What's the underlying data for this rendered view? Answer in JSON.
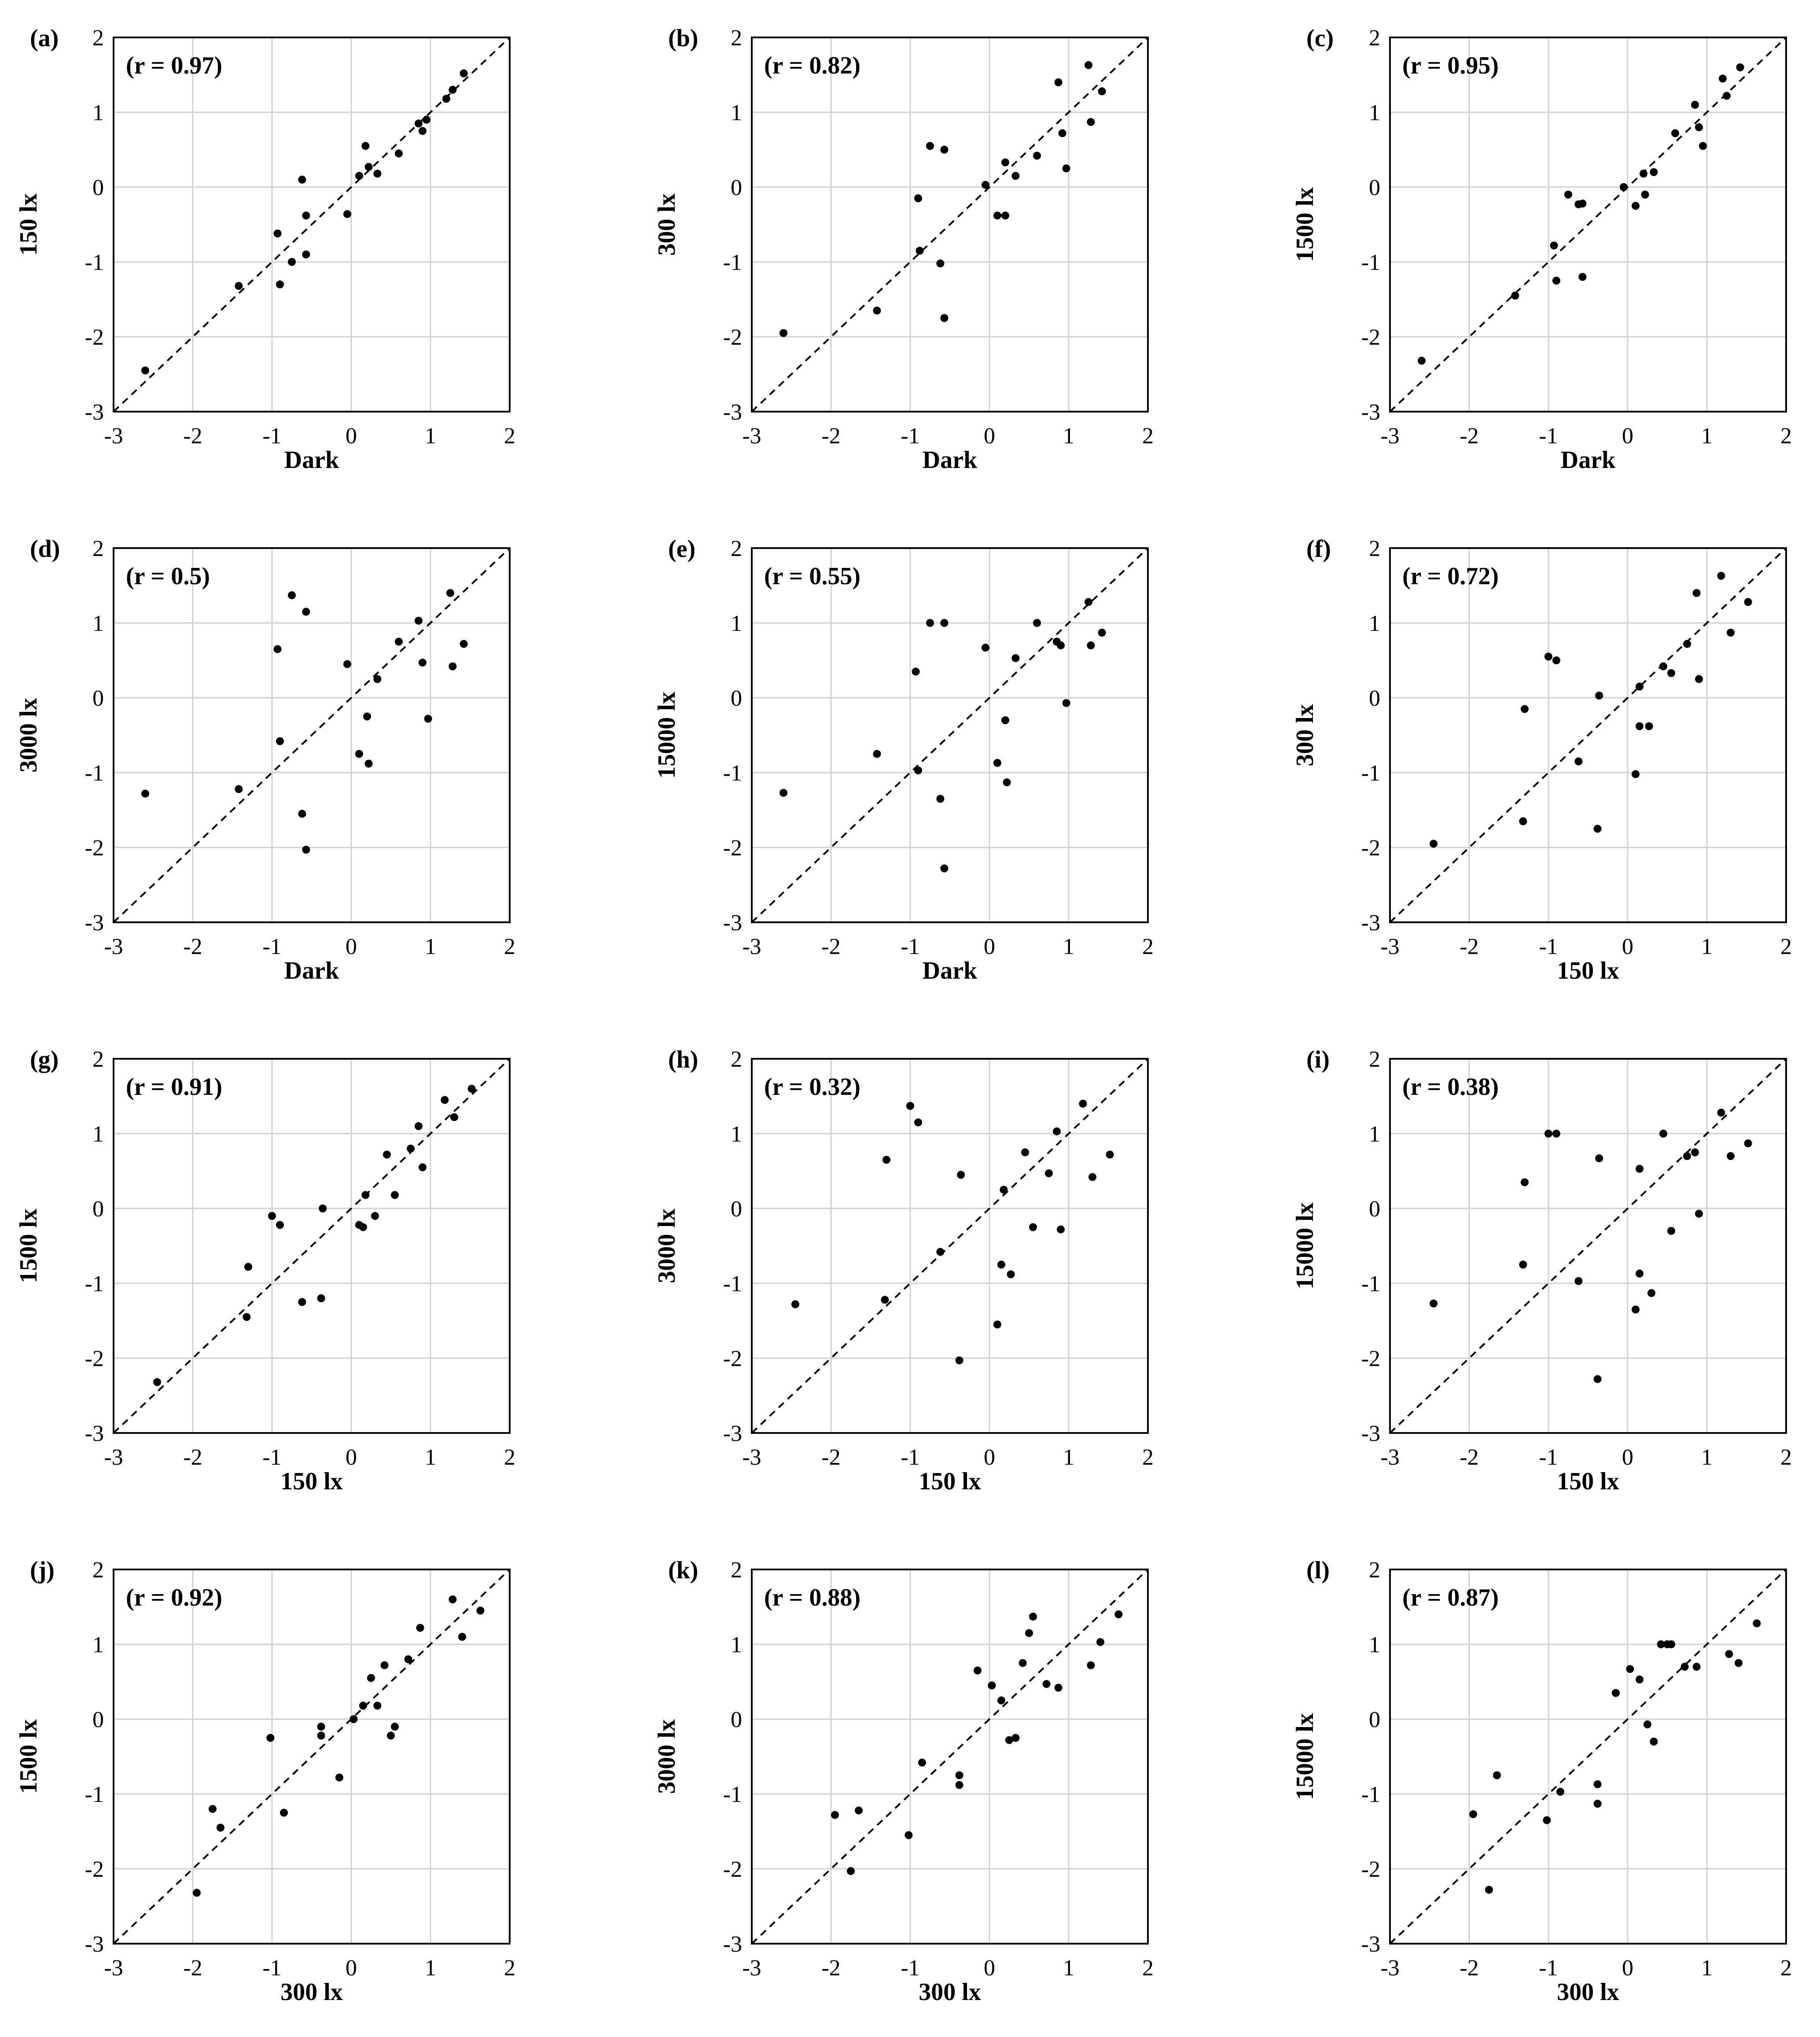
{
  "figure": {
    "axis_ticks": [
      "-3",
      "-2",
      "-1",
      "0",
      "1",
      "2"
    ]
  },
  "chart_data": [
    {
      "type": "scatter",
      "panel_label": "(a)",
      "correlation": "(r = 0.97)",
      "xlabel": "Dark",
      "ylabel": "150 lx",
      "xlim": [
        -3,
        2
      ],
      "ylim": [
        -3,
        2
      ],
      "reference_line": "y = x",
      "points": [
        [
          -2.6,
          -2.45
        ],
        [
          -1.42,
          -1.32
        ],
        [
          -0.93,
          -0.62
        ],
        [
          -0.9,
          -1.3
        ],
        [
          -0.75,
          -1.0
        ],
        [
          -0.62,
          0.1
        ],
        [
          -0.57,
          -0.38
        ],
        [
          -0.57,
          -0.9
        ],
        [
          -0.05,
          -0.36
        ],
        [
          0.1,
          0.15
        ],
        [
          0.18,
          0.55
        ],
        [
          0.22,
          0.27
        ],
        [
          0.33,
          0.18
        ],
        [
          0.6,
          0.45
        ],
        [
          0.85,
          0.85
        ],
        [
          0.9,
          0.75
        ],
        [
          0.95,
          0.9
        ],
        [
          1.2,
          1.18
        ],
        [
          1.28,
          1.3
        ],
        [
          1.42,
          1.52
        ]
      ]
    },
    {
      "type": "scatter",
      "panel_label": "(b)",
      "correlation": "(r = 0.82)",
      "xlabel": "Dark",
      "ylabel": "300 lx",
      "xlim": [
        -3,
        2
      ],
      "ylim": [
        -3,
        2
      ],
      "reference_line": "y = x",
      "points": [
        [
          -2.6,
          -1.95
        ],
        [
          -1.42,
          -1.65
        ],
        [
          -0.9,
          -0.15
        ],
        [
          -0.88,
          -0.85
        ],
        [
          -0.75,
          0.55
        ],
        [
          -0.62,
          -1.02
        ],
        [
          -0.57,
          0.5
        ],
        [
          -0.57,
          -1.75
        ],
        [
          -0.05,
          0.03
        ],
        [
          0.1,
          -0.38
        ],
        [
          0.2,
          -0.38
        ],
        [
          0.2,
          0.33
        ],
        [
          0.33,
          0.15
        ],
        [
          0.6,
          0.42
        ],
        [
          0.87,
          1.4
        ],
        [
          0.92,
          0.72
        ],
        [
          0.97,
          0.25
        ],
        [
          1.25,
          1.63
        ],
        [
          1.28,
          0.87
        ],
        [
          1.42,
          1.28
        ]
      ]
    },
    {
      "type": "scatter",
      "panel_label": "(c)",
      "correlation": "(r = 0.95)",
      "xlabel": "Dark",
      "ylabel": "1500 lx",
      "xlim": [
        -3,
        2
      ],
      "ylim": [
        -3,
        2
      ],
      "reference_line": "y = x",
      "points": [
        [
          -2.6,
          -2.32
        ],
        [
          -1.42,
          -1.45
        ],
        [
          -0.93,
          -0.78
        ],
        [
          -0.9,
          -1.25
        ],
        [
          -0.75,
          -0.1
        ],
        [
          -0.62,
          -0.23
        ],
        [
          -0.57,
          -0.22
        ],
        [
          -0.57,
          -1.2
        ],
        [
          -0.05,
          0.0
        ],
        [
          0.1,
          -0.25
        ],
        [
          0.2,
          0.18
        ],
        [
          0.22,
          -0.1
        ],
        [
          0.33,
          0.2
        ],
        [
          0.6,
          0.72
        ],
        [
          0.85,
          1.1
        ],
        [
          0.9,
          0.8
        ],
        [
          0.95,
          0.55
        ],
        [
          1.2,
          1.45
        ],
        [
          1.25,
          1.22
        ],
        [
          1.42,
          1.6
        ]
      ]
    },
    {
      "type": "scatter",
      "panel_label": "(d)",
      "correlation": "(r = 0.5)",
      "xlabel": "Dark",
      "ylabel": "3000 lx",
      "xlim": [
        -3,
        2
      ],
      "ylim": [
        -3,
        2
      ],
      "reference_line": "y = x",
      "points": [
        [
          -2.6,
          -1.28
        ],
        [
          -1.42,
          -1.22
        ],
        [
          -0.93,
          0.65
        ],
        [
          -0.9,
          -0.58
        ],
        [
          -0.75,
          1.37
        ],
        [
          -0.62,
          -1.55
        ],
        [
          -0.57,
          1.15
        ],
        [
          -0.57,
          -2.03
        ],
        [
          -0.05,
          0.45
        ],
        [
          0.1,
          -0.75
        ],
        [
          0.2,
          -0.25
        ],
        [
          0.22,
          -0.88
        ],
        [
          0.33,
          0.25
        ],
        [
          0.6,
          0.75
        ],
        [
          0.85,
          1.03
        ],
        [
          0.9,
          0.47
        ],
        [
          0.97,
          -0.28
        ],
        [
          1.25,
          1.4
        ],
        [
          1.28,
          0.42
        ],
        [
          1.42,
          0.72
        ]
      ]
    },
    {
      "type": "scatter",
      "panel_label": "(e)",
      "correlation": "(r = 0.55)",
      "xlabel": "Dark",
      "ylabel": "15000 lx",
      "xlim": [
        -3,
        2
      ],
      "ylim": [
        -3,
        2
      ],
      "reference_line": "y = x",
      "points": [
        [
          -2.6,
          -1.27
        ],
        [
          -1.42,
          -0.75
        ],
        [
          -0.93,
          0.35
        ],
        [
          -0.9,
          -0.97
        ],
        [
          -0.75,
          1.0
        ],
        [
          -0.62,
          -1.35
        ],
        [
          -0.57,
          1.0
        ],
        [
          -0.57,
          -2.28
        ],
        [
          -0.05,
          0.67
        ],
        [
          0.1,
          -0.87
        ],
        [
          0.2,
          -0.3
        ],
        [
          0.22,
          -1.13
        ],
        [
          0.33,
          0.53
        ],
        [
          0.6,
          1.0
        ],
        [
          0.85,
          0.75
        ],
        [
          0.9,
          0.7
        ],
        [
          0.97,
          -0.07
        ],
        [
          1.25,
          1.28
        ],
        [
          1.28,
          0.7
        ],
        [
          1.42,
          0.87
        ]
      ]
    },
    {
      "type": "scatter",
      "panel_label": "(f)",
      "correlation": "(r = 0.72)",
      "xlabel": "150 lx",
      "ylabel": "300 lx",
      "xlim": [
        -3,
        2
      ],
      "ylim": [
        -3,
        2
      ],
      "reference_line": "y = x",
      "points": [
        [
          -2.45,
          -1.95
        ],
        [
          -1.32,
          -1.65
        ],
        [
          -1.3,
          -0.15
        ],
        [
          -1.0,
          0.55
        ],
        [
          -0.9,
          0.5
        ],
        [
          -0.62,
          -0.85
        ],
        [
          -0.38,
          -1.75
        ],
        [
          -0.36,
          0.03
        ],
        [
          0.1,
          -1.02
        ],
        [
          0.15,
          0.15
        ],
        [
          0.15,
          -0.38
        ],
        [
          0.27,
          -0.38
        ],
        [
          0.45,
          0.42
        ],
        [
          0.55,
          0.33
        ],
        [
          0.75,
          0.72
        ],
        [
          0.87,
          1.4
        ],
        [
          0.9,
          0.25
        ],
        [
          1.18,
          1.63
        ],
        [
          1.3,
          0.87
        ],
        [
          1.52,
          1.28
        ]
      ]
    },
    {
      "type": "scatter",
      "panel_label": "(g)",
      "correlation": "(r = 0.91)",
      "xlabel": "150 lx",
      "ylabel": "1500 lx",
      "xlim": [
        -3,
        2
      ],
      "ylim": [
        -3,
        2
      ],
      "reference_line": "y = x",
      "points": [
        [
          -2.45,
          -2.32
        ],
        [
          -1.32,
          -1.45
        ],
        [
          -1.3,
          -0.78
        ],
        [
          -1.0,
          -0.1
        ],
        [
          -0.9,
          -0.22
        ],
        [
          -0.62,
          -1.25
        ],
        [
          -0.38,
          -1.2
        ],
        [
          -0.36,
          0.0
        ],
        [
          0.1,
          -0.22
        ],
        [
          0.15,
          -0.25
        ],
        [
          0.18,
          0.18
        ],
        [
          0.3,
          -0.1
        ],
        [
          0.45,
          0.72
        ],
        [
          0.55,
          0.18
        ],
        [
          0.75,
          0.8
        ],
        [
          0.85,
          1.1
        ],
        [
          0.9,
          0.55
        ],
        [
          1.18,
          1.45
        ],
        [
          1.3,
          1.22
        ],
        [
          1.52,
          1.6
        ]
      ]
    },
    {
      "type": "scatter",
      "panel_label": "(h)",
      "correlation": "(r = 0.32)",
      "xlabel": "150 lx",
      "ylabel": "3000 lx",
      "xlim": [
        -3,
        2
      ],
      "ylim": [
        -3,
        2
      ],
      "reference_line": "y = x",
      "points": [
        [
          -2.45,
          -1.28
        ],
        [
          -1.32,
          -1.22
        ],
        [
          -1.3,
          0.65
        ],
        [
          -1.0,
          1.37
        ],
        [
          -0.9,
          1.15
        ],
        [
          -0.62,
          -0.58
        ],
        [
          -0.38,
          -2.03
        ],
        [
          -0.36,
          0.45
        ],
        [
          0.1,
          -1.55
        ],
        [
          0.15,
          -0.75
        ],
        [
          0.18,
          0.25
        ],
        [
          0.27,
          -0.88
        ],
        [
          0.45,
          0.75
        ],
        [
          0.55,
          -0.25
        ],
        [
          0.75,
          0.47
        ],
        [
          0.85,
          1.03
        ],
        [
          0.9,
          -0.28
        ],
        [
          1.18,
          1.4
        ],
        [
          1.3,
          0.42
        ],
        [
          1.52,
          0.72
        ]
      ]
    },
    {
      "type": "scatter",
      "panel_label": "(i)",
      "correlation": "(r = 0.38)",
      "xlabel": "150 lx",
      "ylabel": "15000 lx",
      "xlim": [
        -3,
        2
      ],
      "ylim": [
        -3,
        2
      ],
      "reference_line": "y = x",
      "points": [
        [
          -2.45,
          -1.27
        ],
        [
          -1.32,
          -0.75
        ],
        [
          -1.3,
          0.35
        ],
        [
          -1.0,
          1.0
        ],
        [
          -0.9,
          1.0
        ],
        [
          -0.62,
          -0.97
        ],
        [
          -0.38,
          -2.28
        ],
        [
          -0.36,
          0.67
        ],
        [
          0.1,
          -1.35
        ],
        [
          0.15,
          -0.87
        ],
        [
          0.15,
          0.53
        ],
        [
          0.3,
          -1.13
        ],
        [
          0.45,
          1.0
        ],
        [
          0.55,
          -0.3
        ],
        [
          0.75,
          0.7
        ],
        [
          0.85,
          0.75
        ],
        [
          0.9,
          -0.07
        ],
        [
          1.18,
          1.28
        ],
        [
          1.3,
          0.7
        ],
        [
          1.52,
          0.87
        ]
      ]
    },
    {
      "type": "scatter",
      "panel_label": "(j)",
      "correlation": "(r = 0.92)",
      "xlabel": "300 lx",
      "ylabel": "1500 lx",
      "xlim": [
        -3,
        2
      ],
      "ylim": [
        -3,
        2
      ],
      "reference_line": "y = x",
      "points": [
        [
          -1.95,
          -2.32
        ],
        [
          -1.75,
          -1.2
        ],
        [
          -1.65,
          -1.45
        ],
        [
          -1.02,
          -0.25
        ],
        [
          -0.85,
          -1.25
        ],
        [
          -0.38,
          -0.22
        ],
        [
          -0.38,
          -0.1
        ],
        [
          -0.15,
          -0.78
        ],
        [
          0.03,
          0.0
        ],
        [
          0.15,
          0.18
        ],
        [
          0.25,
          0.55
        ],
        [
          0.33,
          0.18
        ],
        [
          0.42,
          0.72
        ],
        [
          0.5,
          -0.22
        ],
        [
          0.55,
          -0.1
        ],
        [
          0.72,
          0.8
        ],
        [
          0.87,
          1.22
        ],
        [
          1.28,
          1.6
        ],
        [
          1.4,
          1.1
        ],
        [
          1.63,
          1.45
        ]
      ]
    },
    {
      "type": "scatter",
      "panel_label": "(k)",
      "correlation": "(r = 0.88)",
      "xlabel": "300 lx",
      "ylabel": "3000 lx",
      "xlim": [
        -3,
        2
      ],
      "ylim": [
        -3,
        2
      ],
      "reference_line": "y = x",
      "points": [
        [
          -1.95,
          -1.28
        ],
        [
          -1.75,
          -2.03
        ],
        [
          -1.65,
          -1.22
        ],
        [
          -1.02,
          -1.55
        ],
        [
          -0.85,
          -0.58
        ],
        [
          -0.38,
          -0.75
        ],
        [
          -0.38,
          -0.88
        ],
        [
          -0.15,
          0.65
        ],
        [
          0.03,
          0.45
        ],
        [
          0.15,
          0.25
        ],
        [
          0.25,
          -0.28
        ],
        [
          0.33,
          -0.25
        ],
        [
          0.42,
          0.75
        ],
        [
          0.5,
          1.15
        ],
        [
          0.55,
          1.37
        ],
        [
          0.72,
          0.47
        ],
        [
          0.87,
          0.42
        ],
        [
          1.28,
          0.72
        ],
        [
          1.4,
          1.03
        ],
        [
          1.63,
          1.4
        ]
      ]
    },
    {
      "type": "scatter",
      "panel_label": "(l)",
      "correlation": "(r = 0.87)",
      "xlabel": "300 lx",
      "ylabel": "15000 lx",
      "xlim": [
        -3,
        2
      ],
      "ylim": [
        -3,
        2
      ],
      "reference_line": "y = x",
      "points": [
        [
          -1.95,
          -1.27
        ],
        [
          -1.75,
          -2.28
        ],
        [
          -1.65,
          -0.75
        ],
        [
          -1.02,
          -1.35
        ],
        [
          -0.85,
          -0.97
        ],
        [
          -0.38,
          -0.87
        ],
        [
          -0.38,
          -1.13
        ],
        [
          -0.15,
          0.35
        ],
        [
          0.03,
          0.67
        ],
        [
          0.15,
          0.53
        ],
        [
          0.25,
          -0.07
        ],
        [
          0.33,
          -0.3
        ],
        [
          0.42,
          1.0
        ],
        [
          0.5,
          1.0
        ],
        [
          0.55,
          1.0
        ],
        [
          0.72,
          0.7
        ],
        [
          0.87,
          0.7
        ],
        [
          1.28,
          0.87
        ],
        [
          1.4,
          0.75
        ],
        [
          1.63,
          1.28
        ]
      ]
    }
  ]
}
